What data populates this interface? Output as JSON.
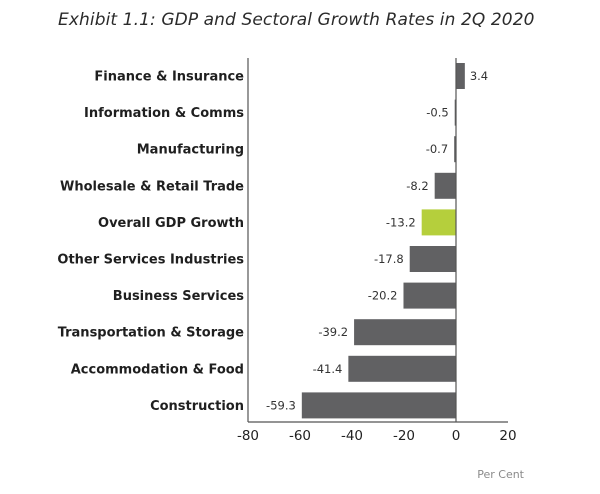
{
  "chart_data": {
    "type": "bar",
    "orientation": "horizontal",
    "title": "Exhibit 1.1: GDP and Sectoral Growth Rates in 2Q 2020",
    "categories": [
      "Finance & Insurance",
      "Information & Comms",
      "Manufacturing",
      "Wholesale & Retail Trade",
      "Overall GDP Growth",
      "Other Services Industries",
      "Business Services",
      "Transportation & Storage",
      "Accommodation & Food",
      "Construction"
    ],
    "values": [
      3.4,
      -0.5,
      -0.7,
      -8.2,
      -13.2,
      -17.8,
      -20.2,
      -39.2,
      -41.4,
      -59.3
    ],
    "value_labels": [
      "3.4",
      "-0.5",
      "-0.7",
      "-8.2",
      "-13.2",
      "-17.8",
      "-20.2",
      "-39.2",
      "-41.4",
      "-59.3"
    ],
    "highlight_category": "Overall GDP Growth",
    "colors": {
      "default": "#616163",
      "highlight": "#b5cf3c",
      "axis": "#555555"
    },
    "xlabel": "Per Cent",
    "ylabel": "",
    "xlim": [
      -80,
      20
    ],
    "xticks": [
      -80,
      -60,
      -40,
      -20,
      0,
      20
    ],
    "xtick_labels": [
      "-80",
      "-60",
      "-40",
      "-20",
      "0",
      "20"
    ],
    "grid": false,
    "legend": "none"
  }
}
